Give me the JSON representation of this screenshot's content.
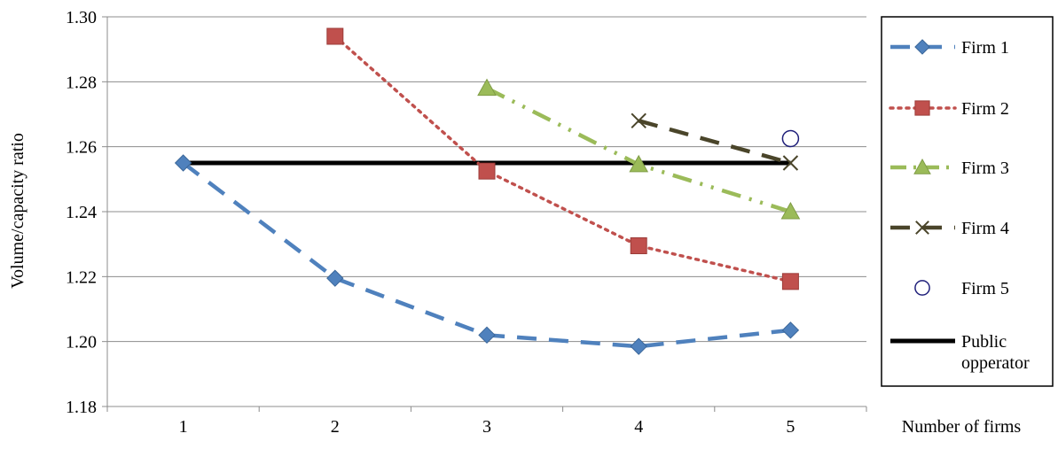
{
  "chart_data": {
    "type": "line",
    "title": "",
    "xlabel": "Number of firms",
    "ylabel": "Volume/capacity ratio",
    "x": [
      1,
      2,
      3,
      4,
      5
    ],
    "xtick_labels": [
      "1",
      "2",
      "3",
      "4",
      "5"
    ],
    "ylim": [
      1.18,
      1.3
    ],
    "yticks": [
      1.18,
      1.2,
      1.22,
      1.24,
      1.26,
      1.28,
      1.3
    ],
    "ytick_labels": [
      "1.18",
      "1.20",
      "1.22",
      "1.24",
      "1.26",
      "1.28",
      "1.30"
    ],
    "grid": "horizontal",
    "legend_position": "right",
    "series": [
      {
        "name": "Firm 1",
        "x": [
          1,
          2,
          3,
          4,
          5
        ],
        "values": [
          1.255,
          1.2195,
          1.202,
          1.1985,
          1.2035
        ],
        "color": "#4F81BD",
        "line": "dashed",
        "marker": "diamond"
      },
      {
        "name": "Firm 2",
        "x": [
          2,
          3,
          4,
          5
        ],
        "values": [
          1.294,
          1.2525,
          1.2295,
          1.2185
        ],
        "color": "#C0504D",
        "line": "dotted",
        "marker": "square"
      },
      {
        "name": "Firm 3",
        "x": [
          3,
          4,
          5
        ],
        "values": [
          1.278,
          1.2545,
          1.24
        ],
        "color": "#9BBB59",
        "line": "dashdotdot",
        "marker": "triangle"
      },
      {
        "name": "Firm 4",
        "x": [
          4,
          5
        ],
        "values": [
          1.268,
          1.255
        ],
        "color": "#4A452A",
        "line": "dashed",
        "marker": "x"
      },
      {
        "name": "Firm 5",
        "x": [
          5
        ],
        "values": [
          1.2625
        ],
        "color": "#1F1F7A",
        "line": "none",
        "marker": "circle-open"
      },
      {
        "name": "Public opperator",
        "x": [
          1,
          5
        ],
        "values": [
          1.255,
          1.255
        ],
        "color": "#000000",
        "line": "solid",
        "marker": "none"
      }
    ],
    "legend_label_lines": [
      [
        "Firm 1"
      ],
      [
        "Firm 2"
      ],
      [
        "Firm 3"
      ],
      [
        "Firm 4"
      ],
      [
        "Firm 5"
      ],
      [
        "Public",
        "opperator"
      ]
    ]
  }
}
